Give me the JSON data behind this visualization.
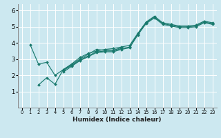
{
  "xlabel": "Humidex (Indice chaleur)",
  "bg_color": "#cce8f0",
  "grid_color": "#ffffff",
  "line_color": "#1a7a6e",
  "xlim": [
    -0.5,
    23.5
  ],
  "ylim": [
    0,
    6.4
  ],
  "xticks": [
    0,
    1,
    2,
    3,
    4,
    5,
    6,
    7,
    8,
    9,
    10,
    11,
    12,
    13,
    14,
    15,
    16,
    17,
    18,
    19,
    20,
    21,
    22,
    23
  ],
  "yticks": [
    1,
    2,
    3,
    4,
    5,
    6
  ],
  "series": [
    [
      1,
      3.9,
      2,
      2.7,
      3,
      2.8,
      4,
      2.0,
      5,
      2.35,
      6,
      2.7,
      7,
      3.1,
      8,
      3.35,
      9,
      3.5,
      10,
      3.6,
      11,
      3.65,
      12,
      3.75,
      13,
      3.85,
      14,
      4.6,
      15,
      5.3,
      16,
      5.65,
      17,
      5.25,
      18,
      5.15,
      19,
      5.05,
      20,
      5.05,
      21,
      5.1,
      22,
      5.35,
      23,
      5.25
    ],
    [
      2,
      1.4,
      3,
      1.85,
      4,
      1.45,
      5,
      2.35,
      6,
      2.65,
      7,
      3.0,
      8,
      3.3,
      9,
      3.6,
      10,
      3.55,
      11,
      3.55,
      12,
      3.7
    ],
    [
      5,
      2.3,
      6,
      2.6,
      7,
      2.95,
      8,
      3.2,
      9,
      3.45,
      10,
      3.5,
      11,
      3.5,
      12,
      3.65,
      13,
      3.75,
      14,
      4.55,
      15,
      5.25,
      16,
      5.6,
      17,
      5.2,
      18,
      5.1,
      19,
      5.0,
      20,
      5.0,
      21,
      5.05,
      22,
      5.3,
      23,
      5.2
    ],
    [
      5,
      2.2,
      6,
      2.55,
      7,
      2.9,
      8,
      3.15,
      9,
      3.4,
      10,
      3.45,
      11,
      3.45,
      12,
      3.6,
      13,
      3.7,
      14,
      4.5,
      15,
      5.2,
      16,
      5.55,
      17,
      5.15,
      18,
      5.05,
      19,
      4.95,
      20,
      4.95,
      21,
      5.0,
      22,
      5.25,
      23,
      5.15
    ]
  ]
}
